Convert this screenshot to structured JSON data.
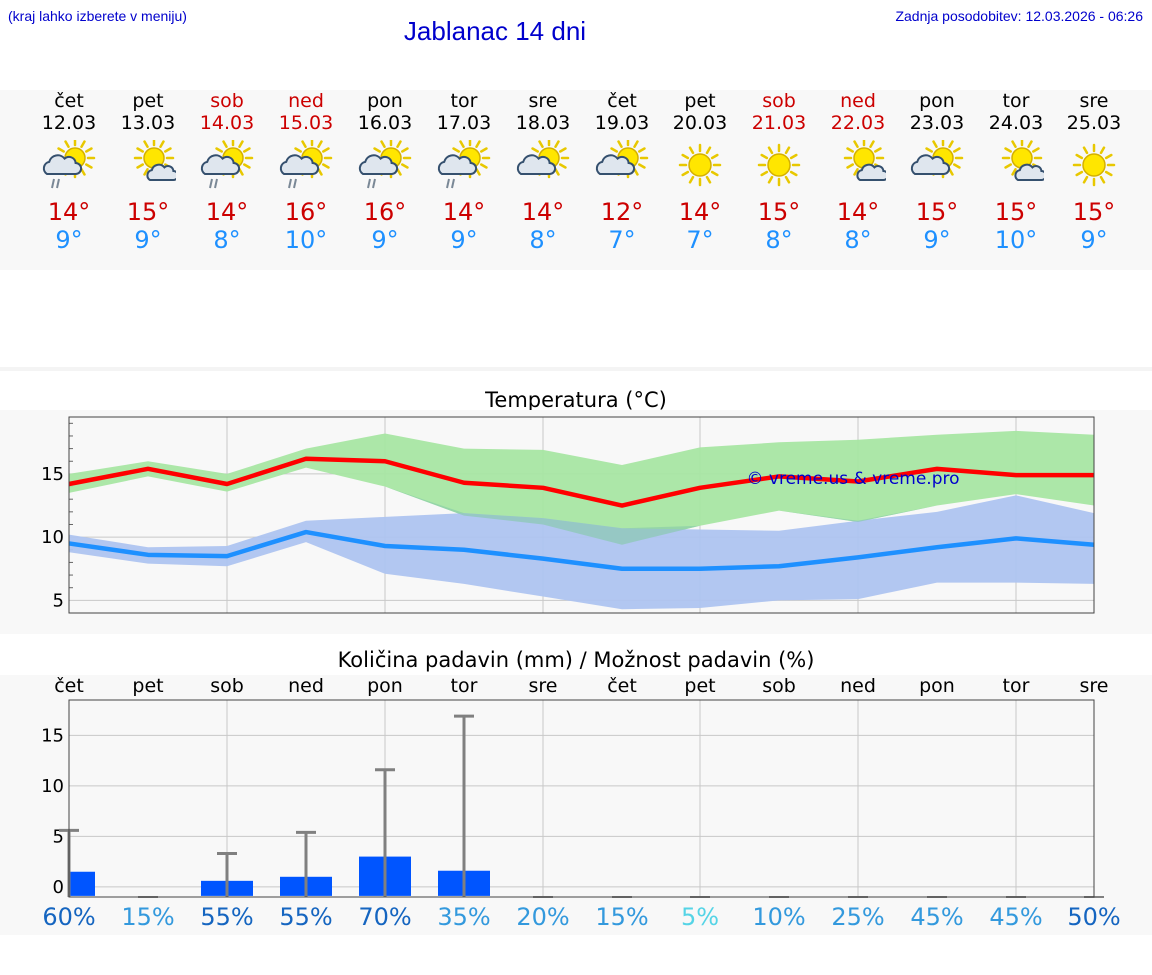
{
  "header": {
    "hint": "(kraj lahko izberete v meniju)",
    "title": "Jablanac 14 dni",
    "updated": "Zadnja posodobitev: 12.03.2026 - 06:26"
  },
  "days": [
    {
      "name": "čet",
      "date": "12.03",
      "icon": "sun-cloud-rain-icon",
      "max": "14°",
      "min": "9°",
      "weekend": false
    },
    {
      "name": "pet",
      "date": "13.03",
      "icon": "sun-small-cloud-icon",
      "max": "15°",
      "min": "9°",
      "weekend": false
    },
    {
      "name": "sob",
      "date": "14.03",
      "icon": "sun-cloud-rain-icon",
      "max": "14°",
      "min": "8°",
      "weekend": true
    },
    {
      "name": "ned",
      "date": "15.03",
      "icon": "sun-cloud-rain-icon",
      "max": "16°",
      "min": "10°",
      "weekend": true
    },
    {
      "name": "pon",
      "date": "16.03",
      "icon": "sun-cloud-rain-icon",
      "max": "16°",
      "min": "9°",
      "weekend": false
    },
    {
      "name": "tor",
      "date": "17.03",
      "icon": "sun-cloud-rain-icon",
      "max": "14°",
      "min": "9°",
      "weekend": false
    },
    {
      "name": "sre",
      "date": "18.03",
      "icon": "sun-cloud-icon",
      "max": "14°",
      "min": "8°",
      "weekend": false
    },
    {
      "name": "čet",
      "date": "19.03",
      "icon": "sun-cloud-icon",
      "max": "12°",
      "min": "7°",
      "weekend": false
    },
    {
      "name": "pet",
      "date": "20.03",
      "icon": "sun-icon",
      "max": "14°",
      "min": "7°",
      "weekend": false
    },
    {
      "name": "sob",
      "date": "21.03",
      "icon": "sun-icon",
      "max": "15°",
      "min": "8°",
      "weekend": true
    },
    {
      "name": "ned",
      "date": "22.03",
      "icon": "sun-small-cloud-icon",
      "max": "14°",
      "min": "8°",
      "weekend": true
    },
    {
      "name": "pon",
      "date": "23.03",
      "icon": "sun-cloud-icon",
      "max": "15°",
      "min": "9°",
      "weekend": false
    },
    {
      "name": "tor",
      "date": "24.03",
      "icon": "sun-small-cloud-icon",
      "max": "15°",
      "min": "10°",
      "weekend": false
    },
    {
      "name": "sre",
      "date": "25.03",
      "icon": "sun-icon",
      "max": "15°",
      "min": "9°",
      "weekend": false
    }
  ],
  "colors": {
    "max": "#ff0000",
    "min": "#1e90ff",
    "max_band": "#a8e6a3",
    "min_band": "#aec4f0",
    "overlap": "#86c9a8",
    "bar": "#0055ff",
    "whisker": "#808080",
    "prob_colors": [
      "#1565c0",
      "#3399dd",
      "#55d4e6"
    ]
  },
  "chart_data": [
    {
      "type": "line",
      "title": "Temperatura (°C)",
      "watermark": "© vreme.us & vreme.pro",
      "ylim": [
        4,
        19.5
      ],
      "yticks": [
        5,
        10,
        15
      ],
      "x": [
        "12.03",
        "13.03",
        "14.03",
        "15.03",
        "16.03",
        "17.03",
        "18.03",
        "19.03",
        "20.03",
        "21.03",
        "22.03",
        "23.03",
        "24.03",
        "25.03"
      ],
      "series": [
        {
          "name": "max",
          "values": [
            14.2,
            15.4,
            14.2,
            16.2,
            16.0,
            14.3,
            13.9,
            12.5,
            13.9,
            14.8,
            14.4,
            15.4,
            14.9,
            14.9
          ]
        },
        {
          "name": "max_upper",
          "values": [
            15.0,
            16.0,
            15.0,
            17.0,
            18.2,
            17.0,
            16.9,
            15.7,
            17.1,
            17.5,
            17.7,
            18.1,
            18.4,
            18.1
          ]
        },
        {
          "name": "max_lower",
          "values": [
            13.5,
            14.8,
            13.6,
            15.5,
            14.0,
            11.7,
            11.0,
            9.4,
            10.9,
            12.1,
            11.2,
            12.5,
            13.4,
            12.5
          ]
        },
        {
          "name": "min",
          "values": [
            9.5,
            8.6,
            8.5,
            10.4,
            9.3,
            9.0,
            8.3,
            7.5,
            7.5,
            7.7,
            8.4,
            9.2,
            9.9,
            9.4
          ]
        },
        {
          "name": "min_upper",
          "values": [
            10.2,
            9.2,
            9.3,
            11.3,
            11.6,
            11.9,
            11.5,
            10.7,
            10.6,
            10.5,
            11.3,
            12.0,
            13.3,
            11.9
          ]
        },
        {
          "name": "min_lower",
          "values": [
            8.8,
            7.9,
            7.7,
            9.6,
            7.1,
            6.3,
            5.3,
            4.3,
            4.4,
            5.0,
            5.1,
            6.4,
            6.4,
            6.3
          ]
        }
      ]
    },
    {
      "type": "bar",
      "title": "Količina padavin (mm) / Možnost padavin (%)",
      "ylim": [
        -1,
        18.5
      ],
      "yticks": [
        0,
        5,
        10,
        15
      ],
      "categories": [
        "čet",
        "pet",
        "sob",
        "ned",
        "pon",
        "tor",
        "sre",
        "čet",
        "pet",
        "sob",
        "ned",
        "pon",
        "tor",
        "sre"
      ],
      "values": [
        1.5,
        0,
        0.6,
        1.0,
        3.0,
        1.6,
        0,
        0,
        0,
        0,
        0,
        0,
        0,
        0
      ],
      "max_values": [
        5.6,
        0,
        3.3,
        5.4,
        11.6,
        16.9,
        0,
        0,
        0,
        0,
        0,
        0,
        0,
        0
      ],
      "probability": [
        "60%",
        "15%",
        "55%",
        "55%",
        "70%",
        "35%",
        "20%",
        "15%",
        "5%",
        "10%",
        "25%",
        "45%",
        "45%",
        "50%"
      ]
    }
  ]
}
